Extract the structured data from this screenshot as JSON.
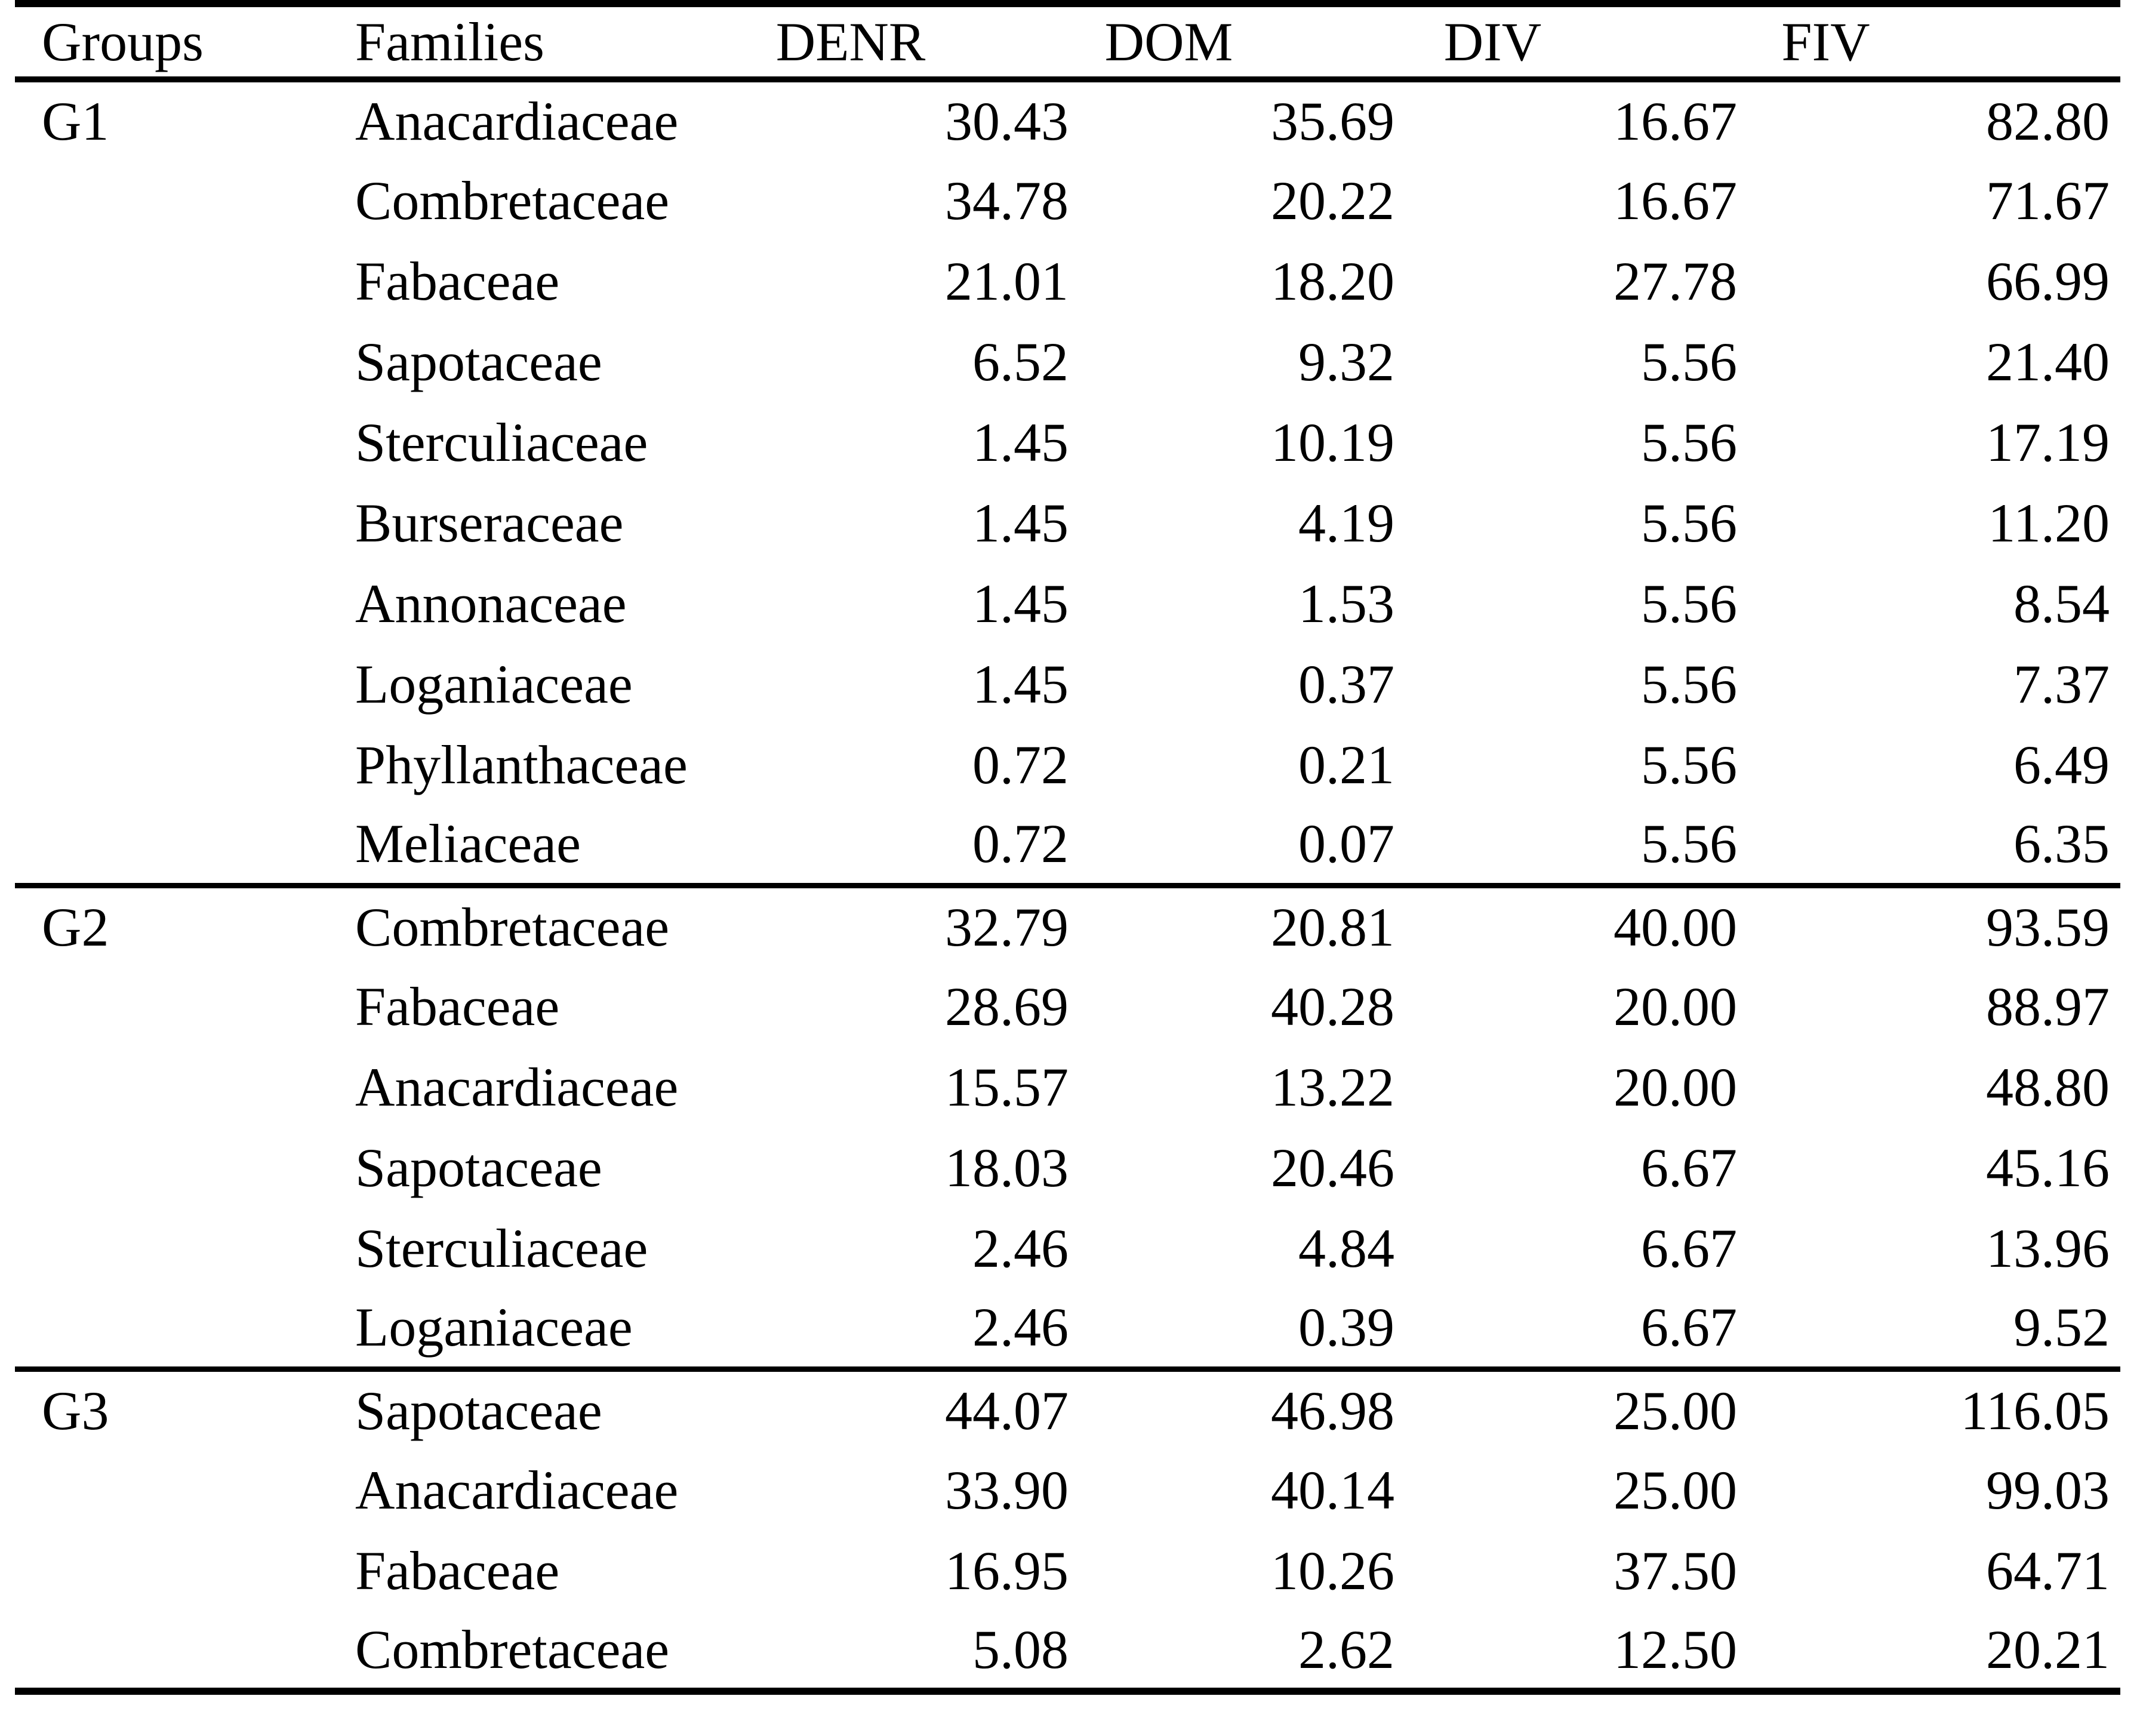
{
  "page": {
    "background": "#ffffff",
    "text_color": "#000000",
    "rule_color": "#000000"
  },
  "table": {
    "columns": [
      {
        "key": "group",
        "label": "Groups"
      },
      {
        "key": "family",
        "label": "Families"
      },
      {
        "key": "denr",
        "label": "DENR"
      },
      {
        "key": "dom",
        "label": "DOM"
      },
      {
        "key": "div",
        "label": "DIV"
      },
      {
        "key": "fiv",
        "label": "FIV"
      }
    ],
    "groups": [
      {
        "group": "G1",
        "rows": [
          {
            "family": "Anacardiaceae",
            "denr": "30.43",
            "dom": "35.69",
            "div": "16.67",
            "fiv": "82.80"
          },
          {
            "family": "Combretaceae",
            "denr": "34.78",
            "dom": "20.22",
            "div": "16.67",
            "fiv": "71.67"
          },
          {
            "family": "Fabaceae",
            "denr": "21.01",
            "dom": "18.20",
            "div": "27.78",
            "fiv": "66.99"
          },
          {
            "family": "Sapotaceae",
            "denr": "6.52",
            "dom": "9.32",
            "div": "5.56",
            "fiv": "21.40"
          },
          {
            "family": "Sterculiaceae",
            "denr": "1.45",
            "dom": "10.19",
            "div": "5.56",
            "fiv": "17.19"
          },
          {
            "family": "Burseraceae",
            "denr": "1.45",
            "dom": "4.19",
            "div": "5.56",
            "fiv": "11.20"
          },
          {
            "family": "Annonaceae",
            "denr": "1.45",
            "dom": "1.53",
            "div": "5.56",
            "fiv": "8.54"
          },
          {
            "family": "Loganiaceae",
            "denr": "1.45",
            "dom": "0.37",
            "div": "5.56",
            "fiv": "7.37"
          },
          {
            "family": "Phyllanthaceae",
            "denr": "0.72",
            "dom": "0.21",
            "div": "5.56",
            "fiv": "6.49"
          },
          {
            "family": "Meliaceae",
            "denr": "0.72",
            "dom": "0.07",
            "div": "5.56",
            "fiv": "6.35"
          }
        ]
      },
      {
        "group": "G2",
        "rows": [
          {
            "family": "Combretaceae",
            "denr": "32.79",
            "dom": "20.81",
            "div": "40.00",
            "fiv": "93.59"
          },
          {
            "family": "Fabaceae",
            "denr": "28.69",
            "dom": "40.28",
            "div": "20.00",
            "fiv": "88.97"
          },
          {
            "family": "Anacardiaceae",
            "denr": "15.57",
            "dom": "13.22",
            "div": "20.00",
            "fiv": "48.80"
          },
          {
            "family": "Sapotaceae",
            "denr": "18.03",
            "dom": "20.46",
            "div": "6.67",
            "fiv": "45.16"
          },
          {
            "family": "Sterculiaceae",
            "denr": "2.46",
            "dom": "4.84",
            "div": "6.67",
            "fiv": "13.96"
          },
          {
            "family": "Loganiaceae",
            "denr": "2.46",
            "dom": "0.39",
            "div": "6.67",
            "fiv": "9.52"
          }
        ]
      },
      {
        "group": "G3",
        "rows": [
          {
            "family": "Sapotaceae",
            "denr": "44.07",
            "dom": "46.98",
            "div": "25.00",
            "fiv": "116.05"
          },
          {
            "family": "Anacardiaceae",
            "denr": "33.90",
            "dom": "40.14",
            "div": "25.00",
            "fiv": "99.03"
          },
          {
            "family": "Fabaceae",
            "denr": "16.95",
            "dom": "10.26",
            "div": "37.50",
            "fiv": "64.71"
          },
          {
            "family": "Combretaceae",
            "denr": "5.08",
            "dom": "2.62",
            "div": "12.50",
            "fiv": "20.21"
          }
        ]
      }
    ]
  }
}
